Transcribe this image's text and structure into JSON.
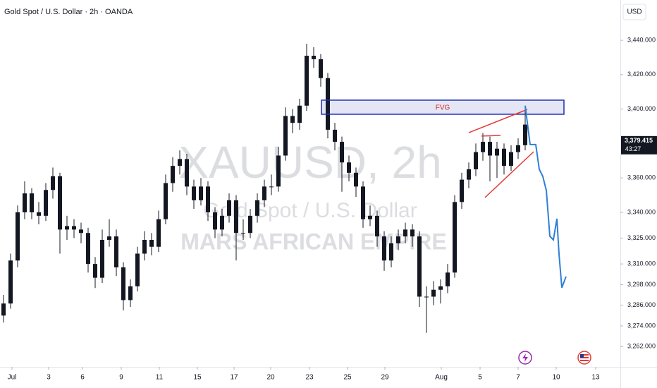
{
  "chart_data": {
    "type": "candlestick",
    "title": "Gold Spot / U.S. Dollar · 2h · OANDA",
    "currency": "USD",
    "watermark": [
      "XAUUSD, 2h",
      "Gold Spot / U.S. Dollar",
      "MARS AFRICAN EMPIRE"
    ],
    "candle_color": "#131722",
    "candles": [
      [
        3280,
        3292,
        3276,
        3287
      ],
      [
        3287,
        3316,
        3284,
        3312
      ],
      [
        3312,
        3344,
        3308,
        3340
      ],
      [
        3340,
        3358,
        3336,
        3351
      ],
      [
        3351,
        3354,
        3336,
        3340
      ],
      [
        3340,
        3346,
        3333,
        3338
      ],
      [
        3338,
        3357,
        3335,
        3353
      ],
      [
        3353,
        3366,
        3348,
        3361
      ],
      [
        3361,
        3363,
        3316,
        3330
      ],
      [
        3330,
        3338,
        3324,
        3332
      ],
      [
        3332,
        3336,
        3325,
        3330
      ],
      [
        3330,
        3334,
        3322,
        3328
      ],
      [
        3328,
        3331,
        3305,
        3310
      ],
      [
        3310,
        3314,
        3296,
        3302
      ],
      [
        3302,
        3330,
        3299,
        3324
      ],
      [
        3324,
        3336,
        3320,
        3326
      ],
      [
        3326,
        3330,
        3303,
        3308
      ],
      [
        3308,
        3311,
        3283,
        3289
      ],
      [
        3289,
        3301,
        3285,
        3297
      ],
      [
        3297,
        3320,
        3294,
        3316
      ],
      [
        3316,
        3329,
        3312,
        3324
      ],
      [
        3324,
        3328,
        3315,
        3320
      ],
      [
        3320,
        3341,
        3317,
        3336
      ],
      [
        3336,
        3362,
        3333,
        3357
      ],
      [
        3357,
        3372,
        3352,
        3367
      ],
      [
        3367,
        3376,
        3362,
        3371
      ],
      [
        3371,
        3374,
        3350,
        3355
      ],
      [
        3355,
        3359,
        3342,
        3347
      ],
      [
        3347,
        3360,
        3344,
        3355
      ],
      [
        3355,
        3358,
        3335,
        3340
      ],
      [
        3340,
        3343,
        3325,
        3330
      ],
      [
        3330,
        3342,
        3326,
        3338
      ],
      [
        3338,
        3351,
        3334,
        3347
      ],
      [
        3347,
        3350,
        3312,
        3328
      ],
      [
        3328,
        3336,
        3324,
        3328
      ],
      [
        3328,
        3342,
        3325,
        3338
      ],
      [
        3338,
        3351,
        3334,
        3347
      ],
      [
        3347,
        3359,
        3343,
        3355
      ],
      [
        3355,
        3362,
        3350,
        3355
      ],
      [
        3355,
        3378,
        3352,
        3373
      ],
      [
        3373,
        3401,
        3370,
        3396
      ],
      [
        3396,
        3400,
        3386,
        3392
      ],
      [
        3392,
        3406,
        3388,
        3402
      ],
      [
        3402,
        3438,
        3399,
        3431
      ],
      [
        3431,
        3436,
        3424,
        3429
      ],
      [
        3429,
        3432,
        3413,
        3418
      ],
      [
        3418,
        3421,
        3383,
        3388
      ],
      [
        3388,
        3392,
        3376,
        3381
      ],
      [
        3381,
        3384,
        3352,
        3369
      ],
      [
        3369,
        3373,
        3358,
        3363
      ],
      [
        3363,
        3366,
        3349,
        3355
      ],
      [
        3355,
        3358,
        3331,
        3336
      ],
      [
        3336,
        3344,
        3332,
        3338
      ],
      [
        3338,
        3341,
        3320,
        3326
      ],
      [
        3326,
        3329,
        3306,
        3312
      ],
      [
        3312,
        3326,
        3308,
        3322
      ],
      [
        3322,
        3330,
        3318,
        3326
      ],
      [
        3326,
        3334,
        3322,
        3330
      ],
      [
        3330,
        3333,
        3320,
        3326
      ],
      [
        3326,
        3329,
        3285,
        3291
      ],
      [
        3291,
        3297,
        3270,
        3291
      ],
      [
        3291,
        3300,
        3286,
        3295
      ],
      [
        3295,
        3301,
        3287,
        3297
      ],
      [
        3297,
        3310,
        3293,
        3305
      ],
      [
        3305,
        3350,
        3302,
        3346
      ],
      [
        3346,
        3363,
        3342,
        3359
      ],
      [
        3359,
        3369,
        3354,
        3365
      ],
      [
        3365,
        3380,
        3361,
        3375
      ],
      [
        3375,
        3386,
        3370,
        3381
      ],
      [
        3381,
        3384,
        3358,
        3373
      ],
      [
        3373,
        3381,
        3360,
        3377
      ],
      [
        3377,
        3380,
        3362,
        3367
      ],
      [
        3367,
        3379,
        3364,
        3375
      ],
      [
        3375,
        3383,
        3371,
        3379
      ],
      [
        3379,
        3402,
        3376,
        3391
      ]
    ],
    "xlim": [
      -0.5,
      87.5
    ],
    "xticks": [
      {
        "value": 1.2,
        "label": "Jul"
      },
      {
        "value": 6.4,
        "label": "3"
      },
      {
        "value": 11.2,
        "label": "6"
      },
      {
        "value": 16.7,
        "label": "9"
      },
      {
        "value": 22.1,
        "label": "11"
      },
      {
        "value": 27.5,
        "label": "15"
      },
      {
        "value": 32.7,
        "label": "17"
      },
      {
        "value": 37.9,
        "label": "20"
      },
      {
        "value": 43.4,
        "label": "23"
      },
      {
        "value": 48.8,
        "label": "25"
      },
      {
        "value": 54.1,
        "label": "29"
      },
      {
        "value": 62.1,
        "label": "Aug"
      },
      {
        "value": 67.6,
        "label": "5"
      },
      {
        "value": 73.0,
        "label": "7"
      },
      {
        "value": 78.4,
        "label": "10"
      },
      {
        "value": 84.0,
        "label": "13"
      }
    ],
    "ylim": [
      3250.2,
      3463.4
    ],
    "yticks": [
      {
        "value": 3440,
        "label": "3,440.000"
      },
      {
        "value": 3420,
        "label": "3,420.000"
      },
      {
        "value": 3400,
        "label": "3,400.000"
      },
      {
        "value": 3360,
        "label": "3,360.000"
      },
      {
        "value": 3340,
        "label": "3,340.000"
      },
      {
        "value": 3325,
        "label": "3,325.000"
      },
      {
        "value": 3310,
        "label": "3,310.000"
      },
      {
        "value": 3298,
        "label": "3,298.000"
      },
      {
        "value": 3286,
        "label": "3,286.000"
      },
      {
        "value": 3274,
        "label": "3,274.000"
      },
      {
        "value": 3262,
        "label": "3,262.000"
      }
    ],
    "last_price": {
      "value": 3379.415,
      "label": "3,379.415",
      "countdown": "43:27"
    },
    "fvg": {
      "label": "FVG",
      "x": [
        45.1,
        79.5
      ],
      "y": [
        3397.0,
        3405.2
      ],
      "color": "#1f2fb0",
      "label_color": "#d32f2f"
    },
    "trendline_color": "#e53935",
    "trendlines": [
      {
        "x": [
          66,
          74.3
        ],
        "y": [
          3386.3,
          3399.8
        ]
      },
      {
        "x": [
          68.3,
          75.2
        ],
        "y": [
          3348.6,
          3375.2
        ]
      },
      {
        "x": [
          67.8,
          70.5
        ],
        "y": [
          3384.3,
          3384.7
        ]
      }
    ],
    "projection": {
      "color": "#2f7fd6",
      "x": [
        74,
        74.7,
        75.5,
        76,
        76.5,
        77,
        77.5,
        78,
        78.5,
        78.8,
        79.2,
        79.8
      ],
      "y": [
        3401.9,
        3379.4,
        3379.4,
        3365.0,
        3360.9,
        3352.7,
        3326.1,
        3324.0,
        3336.3,
        3315.8,
        3296.2,
        3302.7
      ]
    }
  }
}
